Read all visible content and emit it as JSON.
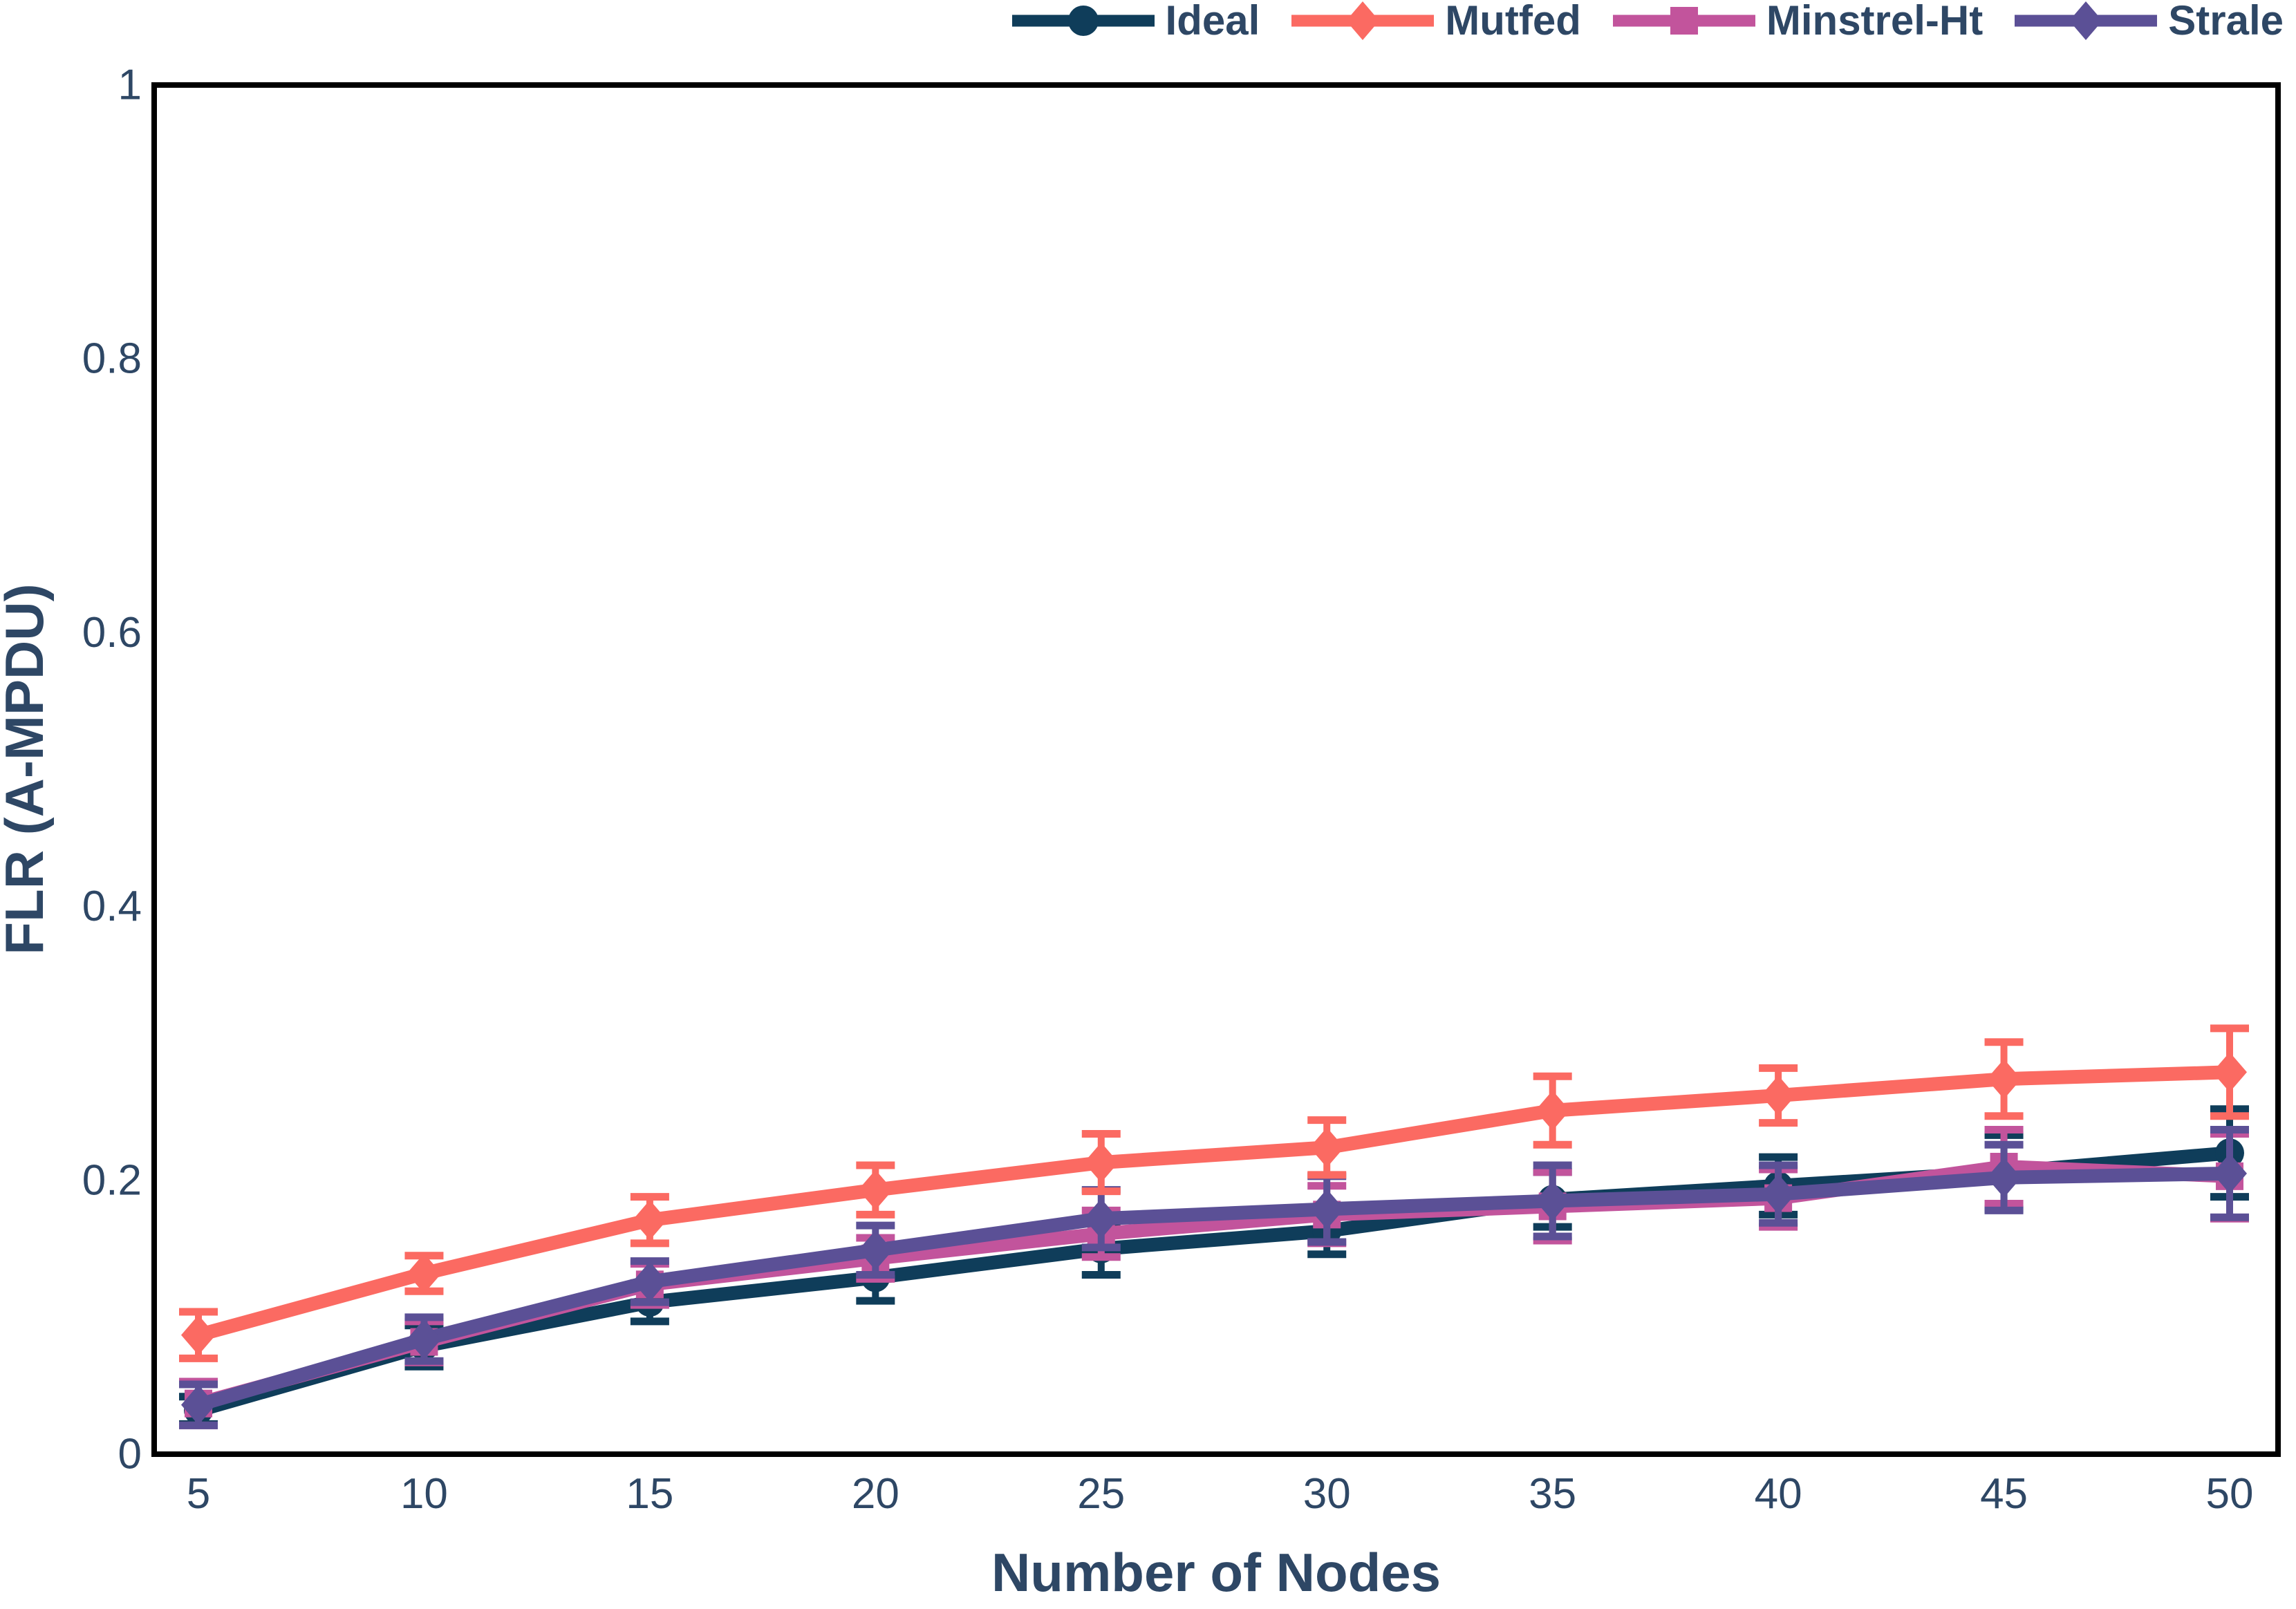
{
  "figure": {
    "background": "#ffffff",
    "text_color": "#2e4765",
    "spine_color": "#000000"
  },
  "chart_data": {
    "type": "line",
    "title": "",
    "xlabel": "Number of Nodes",
    "ylabel": "FLR (A-MPDU)",
    "grid": false,
    "legend_position": "top-right-horizontal",
    "xlim": [
      5,
      50
    ],
    "ylim": [
      0,
      1
    ],
    "xticks": [
      5,
      10,
      15,
      20,
      25,
      30,
      35,
      40,
      45,
      50
    ],
    "yticks": [
      "0",
      "0.2",
      "0.4",
      "0.6",
      "0.8",
      "1"
    ],
    "x": [
      5,
      10,
      15,
      20,
      25,
      30,
      35,
      40,
      45,
      50
    ],
    "series": [
      {
        "name": "Ideal",
        "color": "#0f3d5a",
        "marker": "circle",
        "values": [
          0.032,
          0.079,
          0.111,
          0.129,
          0.15,
          0.163,
          0.186,
          0.196,
          0.206,
          0.22
        ],
        "yerr": [
          0.01,
          0.015,
          0.014,
          0.017,
          0.019,
          0.017,
          0.02,
          0.021,
          0.027,
          0.032
        ]
      },
      {
        "name": "Mutfed",
        "color": "#fb6a62",
        "marker": "diamond",
        "values": [
          0.087,
          0.132,
          0.171,
          0.193,
          0.213,
          0.224,
          0.251,
          0.262,
          0.274,
          0.279
        ],
        "yerr": [
          0.017,
          0.013,
          0.017,
          0.018,
          0.021,
          0.02,
          0.025,
          0.02,
          0.027,
          0.032
        ]
      },
      {
        "name": "Minstrel-Ht",
        "color": "#c2549c",
        "marker": "square",
        "values": [
          0.037,
          0.082,
          0.124,
          0.143,
          0.161,
          0.175,
          0.181,
          0.187,
          0.21,
          0.203
        ],
        "yerr": [
          0.016,
          0.015,
          0.015,
          0.015,
          0.017,
          0.021,
          0.025,
          0.021,
          0.027,
          0.031
        ]
      },
      {
        "name": "Strale",
        "color": "#5b5096",
        "marker": "diamond",
        "values": [
          0.036,
          0.084,
          0.126,
          0.149,
          0.172,
          0.179,
          0.185,
          0.19,
          0.202,
          0.205
        ],
        "yerr": [
          0.015,
          0.016,
          0.015,
          0.018,
          0.021,
          0.024,
          0.026,
          0.021,
          0.024,
          0.032
        ]
      }
    ],
    "z_order": [
      "Ideal",
      "Minstrel-Ht",
      "Strale",
      "Mutfed"
    ]
  }
}
